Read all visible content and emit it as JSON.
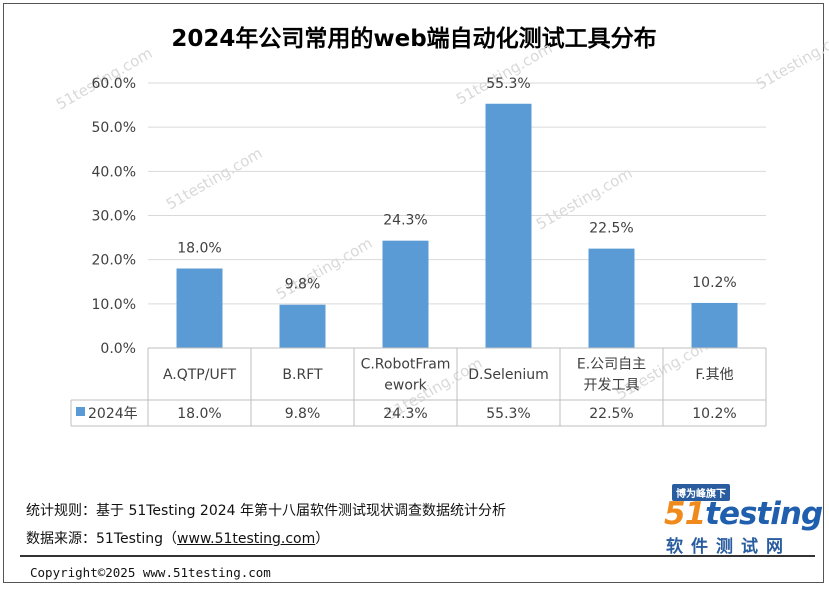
{
  "title": "2024年公司常用的web端自动化测试工具分布",
  "chart_data": {
    "type": "bar",
    "categories": [
      [
        "A.QTP/UFT"
      ],
      [
        "B.RFT"
      ],
      [
        "C.RobotFram",
        "ework"
      ],
      [
        "D.Selenium"
      ],
      [
        "E.公司自主",
        "开发工具"
      ],
      [
        "F.其他"
      ]
    ],
    "series": [
      {
        "name": "2024年",
        "values": [
          18.0,
          9.8,
          24.3,
          55.3,
          22.5,
          10.2
        ],
        "color": "#5b9bd5"
      }
    ],
    "data_labels": [
      "18.0%",
      "9.8%",
      "24.3%",
      "55.3%",
      "22.5%",
      "10.2%"
    ],
    "y_ticks": [
      "0.0%",
      "10.0%",
      "20.0%",
      "30.0%",
      "40.0%",
      "50.0%",
      "60.0%"
    ],
    "ylim": [
      0,
      60
    ],
    "grid": true,
    "legend": "data-table",
    "xlabel": "",
    "ylabel": ""
  },
  "watermark_text": "51testing.com",
  "footer": {
    "rule_text": "统计规则：基于 51Testing 2024 年第十八届软件测试现状调查数据统计分析",
    "source_label": "数据来源：51Testing（",
    "source_link": "www.51testing.com",
    "source_close": "）",
    "copyright": "Copyright©2025 www.51testing.com"
  },
  "logo": {
    "badge": "博为峰旗下",
    "word_num": "51",
    "word_rest": "testing",
    "sub": "软件测试网"
  }
}
